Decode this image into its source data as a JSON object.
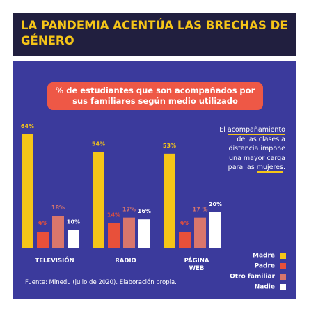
{
  "chart_data": {
    "type": "bar",
    "title": "LA PANDEMIA ACENTÚA LAS BRECHAS DE GÉNERO",
    "subtitle": "% de estudiantes que son acompañados por sus familiares según medio utilizado",
    "categories": [
      "TELEVISIÓN",
      "RADIO",
      "PÁGINA WEB"
    ],
    "series": [
      {
        "name": "Madre",
        "color": "#f5c518",
        "values": [
          64,
          54,
          53
        ],
        "value_labels": [
          "64%",
          "54%",
          "53%"
        ]
      },
      {
        "name": "Padre",
        "color": "#e8503a",
        "values": [
          9,
          14,
          9
        ],
        "value_labels": [
          "9%",
          "14%",
          "9%"
        ]
      },
      {
        "name": "Otro familiar",
        "color": "#d9766c",
        "values": [
          18,
          17,
          17
        ],
        "value_labels": [
          "18%",
          "17%",
          "17 %"
        ]
      },
      {
        "name": "Nadie",
        "color": "#ffffff",
        "values": [
          10,
          16,
          20
        ],
        "value_labels": [
          "10%",
          "16%",
          "20%"
        ]
      }
    ],
    "annotation": [
      {
        "text": "El "
      },
      {
        "text": "acompañamiento",
        "underline": true
      },
      {
        "text": " de las clases a distancia impone una mayor carga para las "
      },
      {
        "text": "mujeres",
        "underline": true
      },
      {
        "text": "."
      }
    ],
    "legend": "bottom-right",
    "source": "Fuente: Minedu (julio de 2020). Elaboración propia."
  }
}
